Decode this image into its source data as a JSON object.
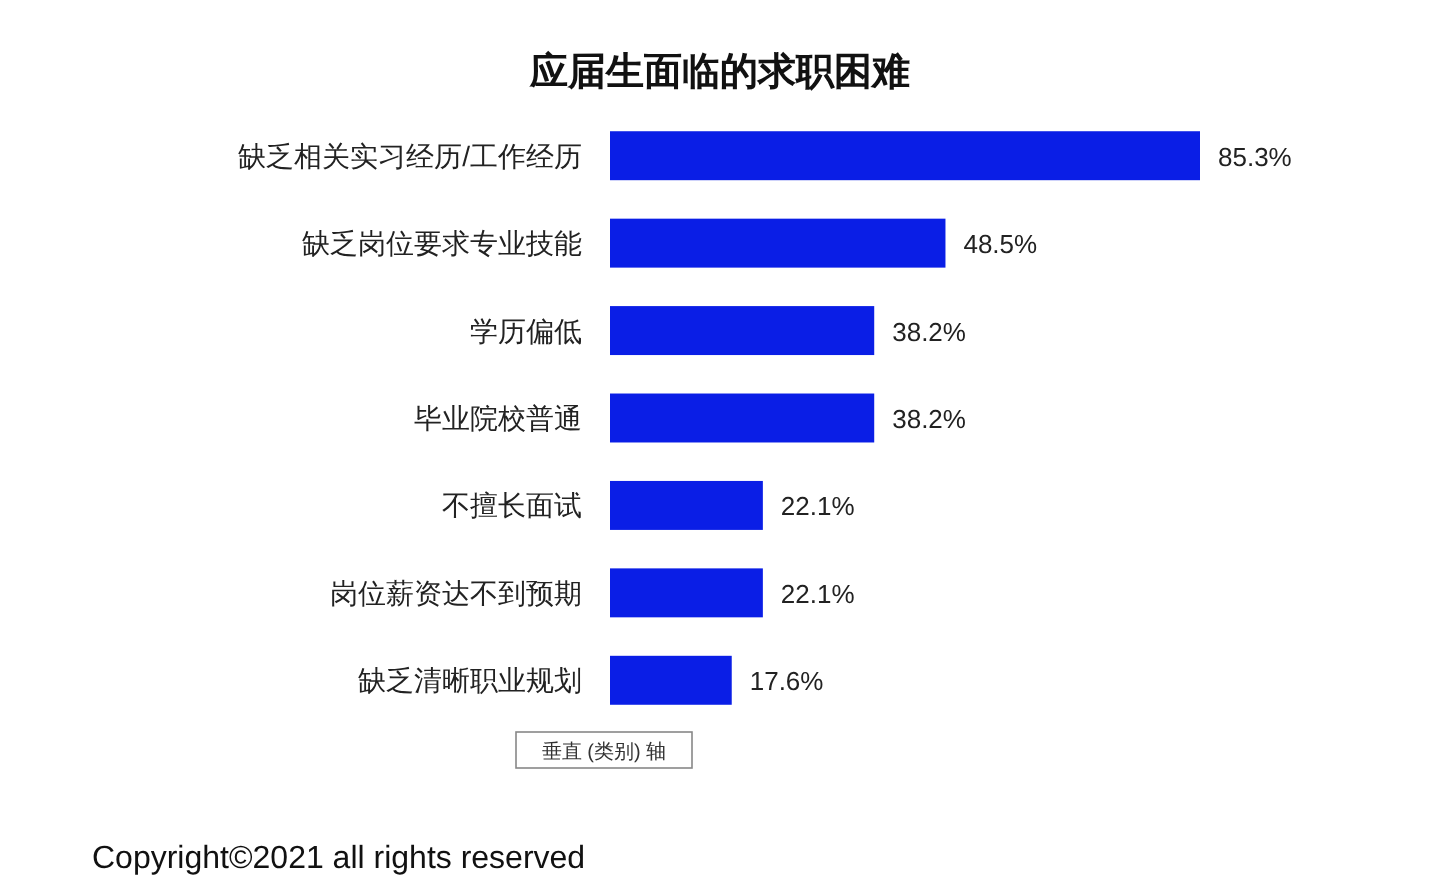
{
  "chart_data": {
    "type": "bar",
    "orientation": "horizontal",
    "title": "应届生面临的求职困难",
    "categories": [
      "缺乏相关实习经历/工作经历",
      "缺乏岗位要求专业技能",
      "学历偏低",
      "毕业院校普通",
      "不擅长面试",
      "岗位薪资达不到预期",
      "缺乏清晰职业规划"
    ],
    "values": [
      85.3,
      48.5,
      38.2,
      38.2,
      22.1,
      22.1,
      17.6
    ],
    "value_labels": [
      "85.3%",
      "48.5%",
      "38.2%",
      "38.2%",
      "22.1%",
      "22.1%",
      "17.6%"
    ],
    "color": "#0a1ee6",
    "annotations": [
      "垂直 (类别) 轴",
      "Copyright©2021 all rights reserved"
    ]
  }
}
